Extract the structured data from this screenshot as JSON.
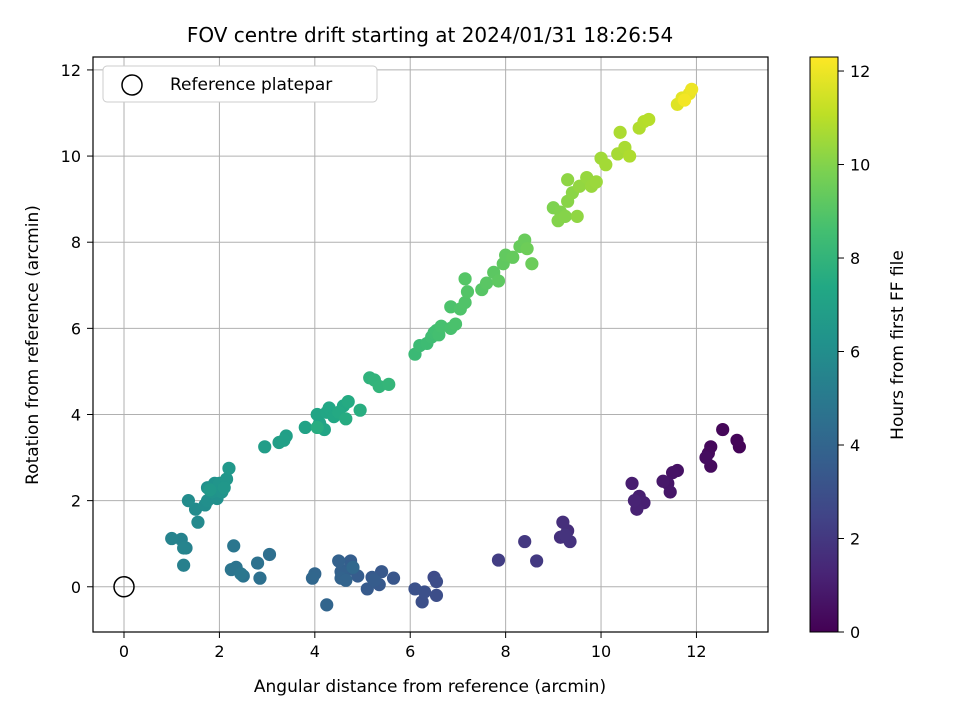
{
  "chart_data": {
    "type": "scatter",
    "title": "FOV centre drift starting at 2024/01/31 18:26:54",
    "xlabel": "Angular distance from reference (arcmin)",
    "ylabel": "Rotation from reference (arcmin)",
    "xlim": [
      -0.65,
      13.5
    ],
    "ylim": [
      -1.05,
      12.3
    ],
    "xticks": [
      0,
      2,
      4,
      6,
      8,
      10,
      12
    ],
    "yticks": [
      0,
      2,
      4,
      6,
      8,
      10,
      12
    ],
    "grid": true,
    "legend": {
      "location": "top-left",
      "entries": [
        "Reference platepar"
      ]
    },
    "reference_point": {
      "x": 0,
      "y": 0,
      "marker": "open-circle",
      "label": "Reference platepar"
    },
    "colorbar": {
      "label": "Hours from first FF file",
      "colormap": "viridis",
      "range": [
        0,
        12.3
      ],
      "ticks": [
        0,
        2,
        4,
        6,
        8,
        10,
        12
      ]
    },
    "points": [
      {
        "x": 12.9,
        "y": 3.25,
        "h": 0.1
      },
      {
        "x": 12.85,
        "y": 3.4,
        "h": 0.15
      },
      {
        "x": 12.55,
        "y": 3.65,
        "h": 0.2
      },
      {
        "x": 12.3,
        "y": 3.25,
        "h": 0.25
      },
      {
        "x": 12.25,
        "y": 3.1,
        "h": 0.3
      },
      {
        "x": 12.3,
        "y": 2.8,
        "h": 0.35
      },
      {
        "x": 12.2,
        "y": 3.0,
        "h": 0.4
      },
      {
        "x": 11.6,
        "y": 2.7,
        "h": 0.6
      },
      {
        "x": 11.5,
        "y": 2.65,
        "h": 0.65
      },
      {
        "x": 11.4,
        "y": 2.4,
        "h": 0.7
      },
      {
        "x": 11.45,
        "y": 2.2,
        "h": 0.75
      },
      {
        "x": 11.3,
        "y": 2.45,
        "h": 0.8
      },
      {
        "x": 10.65,
        "y": 2.4,
        "h": 1.0
      },
      {
        "x": 10.8,
        "y": 2.1,
        "h": 1.05
      },
      {
        "x": 10.9,
        "y": 1.95,
        "h": 1.1
      },
      {
        "x": 10.75,
        "y": 1.8,
        "h": 1.15
      },
      {
        "x": 10.7,
        "y": 2.0,
        "h": 1.2
      },
      {
        "x": 9.3,
        "y": 1.3,
        "h": 1.6
      },
      {
        "x": 9.2,
        "y": 1.5,
        "h": 1.65
      },
      {
        "x": 9.15,
        "y": 1.15,
        "h": 1.7
      },
      {
        "x": 9.35,
        "y": 1.05,
        "h": 1.75
      },
      {
        "x": 9.25,
        "y": 1.2,
        "h": 1.8
      },
      {
        "x": 8.4,
        "y": 1.05,
        "h": 2.0
      },
      {
        "x": 8.65,
        "y": 0.6,
        "h": 2.05
      },
      {
        "x": 7.85,
        "y": 0.62,
        "h": 2.2
      },
      {
        "x": 6.5,
        "y": 0.22,
        "h": 2.8
      },
      {
        "x": 6.55,
        "y": 0.12,
        "h": 2.85
      },
      {
        "x": 6.55,
        "y": -0.2,
        "h": 2.9
      },
      {
        "x": 6.25,
        "y": -0.35,
        "h": 2.95
      },
      {
        "x": 6.3,
        "y": -0.12,
        "h": 3.0
      },
      {
        "x": 6.1,
        "y": -0.05,
        "h": 3.05
      },
      {
        "x": 5.65,
        "y": 0.2,
        "h": 3.3
      },
      {
        "x": 5.4,
        "y": 0.35,
        "h": 3.35
      },
      {
        "x": 5.35,
        "y": 0.05,
        "h": 3.4
      },
      {
        "x": 5.2,
        "y": 0.22,
        "h": 3.45
      },
      {
        "x": 5.1,
        "y": -0.05,
        "h": 3.5
      },
      {
        "x": 5.25,
        "y": 0.15,
        "h": 3.55
      },
      {
        "x": 4.9,
        "y": 0.25,
        "h": 3.6
      },
      {
        "x": 4.75,
        "y": 0.6,
        "h": 3.65
      },
      {
        "x": 4.7,
        "y": 0.4,
        "h": 3.7
      },
      {
        "x": 4.6,
        "y": 0.25,
        "h": 3.75
      },
      {
        "x": 4.55,
        "y": 0.35,
        "h": 3.8
      },
      {
        "x": 4.5,
        "y": 0.6,
        "h": 3.85
      },
      {
        "x": 4.55,
        "y": 0.2,
        "h": 3.9
      },
      {
        "x": 4.65,
        "y": 0.15,
        "h": 3.95
      },
      {
        "x": 4.25,
        "y": -0.42,
        "h": 4.0
      },
      {
        "x": 4.0,
        "y": 0.3,
        "h": 4.05
      },
      {
        "x": 3.95,
        "y": 0.2,
        "h": 4.1
      },
      {
        "x": 4.8,
        "y": 0.45,
        "h": 4.15
      },
      {
        "x": 3.05,
        "y": 0.75,
        "h": 4.5
      },
      {
        "x": 2.85,
        "y": 0.2,
        "h": 4.55
      },
      {
        "x": 2.8,
        "y": 0.55,
        "h": 4.6
      },
      {
        "x": 2.5,
        "y": 0.25,
        "h": 4.65
      },
      {
        "x": 2.35,
        "y": 0.45,
        "h": 4.7
      },
      {
        "x": 2.25,
        "y": 0.4,
        "h": 4.75
      },
      {
        "x": 2.3,
        "y": 0.95,
        "h": 4.8
      },
      {
        "x": 2.45,
        "y": 0.3,
        "h": 4.85
      },
      {
        "x": 1.25,
        "y": 0.5,
        "h": 5.3
      },
      {
        "x": 1.3,
        "y": 0.9,
        "h": 5.35
      },
      {
        "x": 1.2,
        "y": 1.1,
        "h": 5.4
      },
      {
        "x": 1.0,
        "y": 1.12,
        "h": 5.45
      },
      {
        "x": 1.25,
        "y": 0.9,
        "h": 5.5
      },
      {
        "x": 1.55,
        "y": 1.5,
        "h": 5.8
      },
      {
        "x": 1.5,
        "y": 1.8,
        "h": 5.85
      },
      {
        "x": 1.35,
        "y": 2.0,
        "h": 5.9
      },
      {
        "x": 1.7,
        "y": 1.9,
        "h": 5.95
      },
      {
        "x": 1.85,
        "y": 2.1,
        "h": 6.0
      },
      {
        "x": 1.75,
        "y": 2.0,
        "h": 6.05
      },
      {
        "x": 1.95,
        "y": 2.05,
        "h": 6.1
      },
      {
        "x": 1.75,
        "y": 2.3,
        "h": 6.15
      },
      {
        "x": 1.9,
        "y": 2.4,
        "h": 6.2
      },
      {
        "x": 1.85,
        "y": 2.2,
        "h": 6.25
      },
      {
        "x": 2.05,
        "y": 2.2,
        "h": 6.3
      },
      {
        "x": 2.0,
        "y": 2.4,
        "h": 6.35
      },
      {
        "x": 2.15,
        "y": 2.5,
        "h": 6.4
      },
      {
        "x": 2.1,
        "y": 2.3,
        "h": 6.45
      },
      {
        "x": 2.2,
        "y": 2.75,
        "h": 6.5
      },
      {
        "x": 1.8,
        "y": 2.25,
        "h": 6.55
      },
      {
        "x": 2.95,
        "y": 3.25,
        "h": 6.8
      },
      {
        "x": 3.25,
        "y": 3.35,
        "h": 6.85
      },
      {
        "x": 3.4,
        "y": 3.5,
        "h": 6.9
      },
      {
        "x": 3.35,
        "y": 3.4,
        "h": 6.95
      },
      {
        "x": 3.8,
        "y": 3.7,
        "h": 7.05
      },
      {
        "x": 4.1,
        "y": 3.8,
        "h": 7.1
      },
      {
        "x": 4.05,
        "y": 4.0,
        "h": 7.15
      },
      {
        "x": 4.2,
        "y": 3.65,
        "h": 7.2
      },
      {
        "x": 4.25,
        "y": 4.05,
        "h": 7.25
      },
      {
        "x": 4.3,
        "y": 4.15,
        "h": 7.3
      },
      {
        "x": 4.4,
        "y": 3.95,
        "h": 7.35
      },
      {
        "x": 4.6,
        "y": 4.2,
        "h": 7.4
      },
      {
        "x": 4.5,
        "y": 4.05,
        "h": 7.45
      },
      {
        "x": 4.7,
        "y": 4.3,
        "h": 7.5
      },
      {
        "x": 4.65,
        "y": 3.9,
        "h": 7.55
      },
      {
        "x": 4.05,
        "y": 3.7,
        "h": 7.6
      },
      {
        "x": 4.95,
        "y": 4.1,
        "h": 7.65
      },
      {
        "x": 5.15,
        "y": 4.85,
        "h": 7.9
      },
      {
        "x": 5.25,
        "y": 4.8,
        "h": 7.95
      },
      {
        "x": 5.35,
        "y": 4.65,
        "h": 8.0
      },
      {
        "x": 5.55,
        "y": 4.7,
        "h": 8.05
      },
      {
        "x": 6.1,
        "y": 5.4,
        "h": 8.3
      },
      {
        "x": 6.2,
        "y": 5.6,
        "h": 8.35
      },
      {
        "x": 6.35,
        "y": 5.65,
        "h": 8.4
      },
      {
        "x": 6.45,
        "y": 5.8,
        "h": 8.45
      },
      {
        "x": 6.5,
        "y": 5.9,
        "h": 8.5
      },
      {
        "x": 6.55,
        "y": 5.95,
        "h": 8.55
      },
      {
        "x": 6.6,
        "y": 5.85,
        "h": 8.6
      },
      {
        "x": 6.65,
        "y": 6.05,
        "h": 8.65
      },
      {
        "x": 6.85,
        "y": 6.0,
        "h": 8.7
      },
      {
        "x": 6.95,
        "y": 6.1,
        "h": 8.75
      },
      {
        "x": 6.85,
        "y": 6.5,
        "h": 8.8
      },
      {
        "x": 7.05,
        "y": 6.45,
        "h": 8.85
      },
      {
        "x": 7.15,
        "y": 6.6,
        "h": 8.9
      },
      {
        "x": 7.2,
        "y": 6.85,
        "h": 8.95
      },
      {
        "x": 7.15,
        "y": 7.15,
        "h": 9.0
      },
      {
        "x": 7.5,
        "y": 6.9,
        "h": 9.05
      },
      {
        "x": 7.6,
        "y": 7.05,
        "h": 9.1
      },
      {
        "x": 7.75,
        "y": 7.3,
        "h": 9.15
      },
      {
        "x": 7.85,
        "y": 7.1,
        "h": 9.2
      },
      {
        "x": 7.95,
        "y": 7.5,
        "h": 9.25
      },
      {
        "x": 8.0,
        "y": 7.7,
        "h": 9.3
      },
      {
        "x": 8.15,
        "y": 7.65,
        "h": 9.35
      },
      {
        "x": 8.3,
        "y": 7.9,
        "h": 9.4
      },
      {
        "x": 8.4,
        "y": 8.05,
        "h": 9.45
      },
      {
        "x": 8.55,
        "y": 7.5,
        "h": 9.5
      },
      {
        "x": 8.45,
        "y": 7.85,
        "h": 9.55
      },
      {
        "x": 9.0,
        "y": 8.8,
        "h": 9.9
      },
      {
        "x": 9.15,
        "y": 8.7,
        "h": 9.95
      },
      {
        "x": 9.1,
        "y": 8.5,
        "h": 10.0
      },
      {
        "x": 9.25,
        "y": 8.6,
        "h": 10.05
      },
      {
        "x": 9.3,
        "y": 8.95,
        "h": 10.1
      },
      {
        "x": 9.4,
        "y": 9.15,
        "h": 10.15
      },
      {
        "x": 9.3,
        "y": 9.45,
        "h": 10.2
      },
      {
        "x": 9.5,
        "y": 8.6,
        "h": 10.25
      },
      {
        "x": 9.55,
        "y": 9.3,
        "h": 10.3
      },
      {
        "x": 9.7,
        "y": 9.5,
        "h": 10.35
      },
      {
        "x": 9.8,
        "y": 9.3,
        "h": 10.4
      },
      {
        "x": 9.9,
        "y": 9.4,
        "h": 10.45
      },
      {
        "x": 10.0,
        "y": 9.95,
        "h": 10.55
      },
      {
        "x": 10.1,
        "y": 9.8,
        "h": 10.6
      },
      {
        "x": 10.35,
        "y": 10.05,
        "h": 10.65
      },
      {
        "x": 10.5,
        "y": 10.2,
        "h": 10.7
      },
      {
        "x": 10.4,
        "y": 10.55,
        "h": 10.75
      },
      {
        "x": 10.6,
        "y": 10.0,
        "h": 10.8
      },
      {
        "x": 10.8,
        "y": 10.65,
        "h": 10.85
      },
      {
        "x": 10.9,
        "y": 10.8,
        "h": 10.9
      },
      {
        "x": 11.0,
        "y": 10.85,
        "h": 10.95
      },
      {
        "x": 11.6,
        "y": 11.2,
        "h": 11.7
      },
      {
        "x": 11.7,
        "y": 11.35,
        "h": 11.8
      },
      {
        "x": 11.85,
        "y": 11.45,
        "h": 11.9
      },
      {
        "x": 11.9,
        "y": 11.55,
        "h": 12.0
      },
      {
        "x": 11.75,
        "y": 11.3,
        "h": 12.1
      }
    ]
  }
}
